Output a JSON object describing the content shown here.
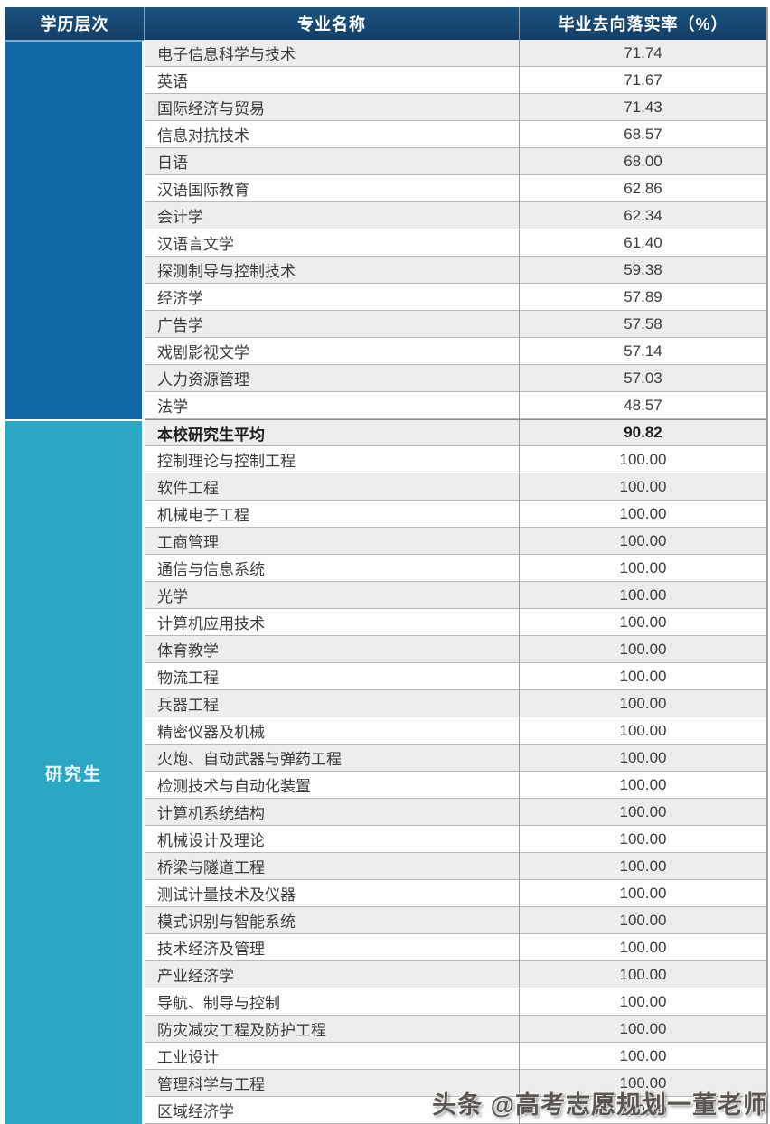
{
  "chart_data": {
    "type": "table",
    "columns": [
      "学历层次",
      "专业名称",
      "毕业去向落实率（%）"
    ],
    "sections": [
      {
        "level": "",
        "rows": [
          {
            "major": "电子信息科学与技术",
            "rate": "71.74"
          },
          {
            "major": "英语",
            "rate": "71.67"
          },
          {
            "major": "国际经济与贸易",
            "rate": "71.43"
          },
          {
            "major": "信息对抗技术",
            "rate": "68.57"
          },
          {
            "major": "日语",
            "rate": "68.00"
          },
          {
            "major": "汉语国际教育",
            "rate": "62.86"
          },
          {
            "major": "会计学",
            "rate": "62.34"
          },
          {
            "major": "汉语言文学",
            "rate": "61.40"
          },
          {
            "major": "探测制导与控制技术",
            "rate": "59.38"
          },
          {
            "major": "经济学",
            "rate": "57.89"
          },
          {
            "major": "广告学",
            "rate": "57.58"
          },
          {
            "major": "戏剧影视文学",
            "rate": "57.14"
          },
          {
            "major": "人力资源管理",
            "rate": "57.03"
          },
          {
            "major": "法学",
            "rate": "48.57"
          }
        ]
      },
      {
        "level": "研究生",
        "rows": [
          {
            "major": "本校研究生平均",
            "rate": "90.82",
            "bold": true
          },
          {
            "major": "控制理论与控制工程",
            "rate": "100.00"
          },
          {
            "major": "软件工程",
            "rate": "100.00"
          },
          {
            "major": "机械电子工程",
            "rate": "100.00"
          },
          {
            "major": "工商管理",
            "rate": "100.00"
          },
          {
            "major": "通信与信息系统",
            "rate": "100.00"
          },
          {
            "major": "光学",
            "rate": "100.00"
          },
          {
            "major": "计算机应用技术",
            "rate": "100.00"
          },
          {
            "major": "体育教学",
            "rate": "100.00"
          },
          {
            "major": "物流工程",
            "rate": "100.00"
          },
          {
            "major": "兵器工程",
            "rate": "100.00"
          },
          {
            "major": "精密仪器及机械",
            "rate": "100.00"
          },
          {
            "major": "火炮、自动武器与弹药工程",
            "rate": "100.00"
          },
          {
            "major": "检测技术与自动化装置",
            "rate": "100.00"
          },
          {
            "major": "计算机系统结构",
            "rate": "100.00"
          },
          {
            "major": "机械设计及理论",
            "rate": "100.00"
          },
          {
            "major": "桥梁与隧道工程",
            "rate": "100.00"
          },
          {
            "major": "测试计量技术及仪器",
            "rate": "100.00"
          },
          {
            "major": "模式识别与智能系统",
            "rate": "100.00"
          },
          {
            "major": "技术经济及管理",
            "rate": "100.00"
          },
          {
            "major": "产业经济学",
            "rate": "100.00"
          },
          {
            "major": "导航、制导与控制",
            "rate": "100.00"
          },
          {
            "major": "防灾减灾工程及防护工程",
            "rate": "100.00"
          },
          {
            "major": "工业设计",
            "rate": "100.00"
          },
          {
            "major": "管理科学与工程",
            "rate": "100.00"
          },
          {
            "major": "区域经济学",
            "rate": "100.00"
          }
        ]
      }
    ],
    "layout": {
      "stripe_color": "#ededee",
      "header_color": "#164a75",
      "section1_color": "#0f69a7",
      "section2_color": "#2ba7c4"
    }
  },
  "watermark": {
    "text": "头条 @高考志愿规划一董老师"
  }
}
